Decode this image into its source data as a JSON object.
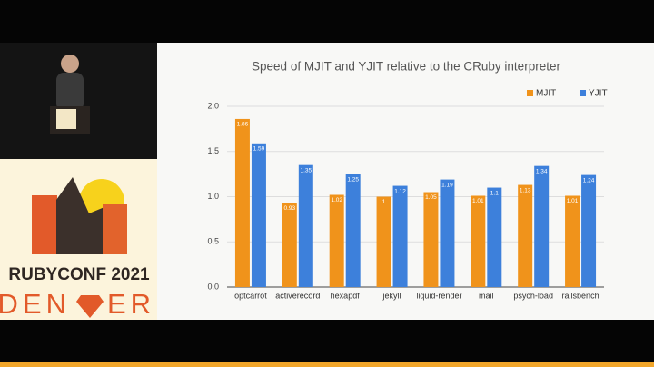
{
  "event": {
    "name": "RUBYCONF 2021",
    "city_left": "DEN",
    "city_right": "ER"
  },
  "chart_data": {
    "type": "bar",
    "title": "Speed of MJIT and YJIT relative to the CRuby interpreter",
    "categories": [
      "optcarrot",
      "activerecord",
      "hexapdf",
      "jekyll",
      "liquid-render",
      "mail",
      "psych-load",
      "railsbench"
    ],
    "series": [
      {
        "name": "MJIT",
        "color": "#f0931b",
        "values": [
          1.86,
          0.93,
          1.02,
          1,
          1.05,
          1.01,
          1.13,
          1.01
        ]
      },
      {
        "name": "YJIT",
        "color": "#3d80db",
        "values": [
          1.59,
          1.35,
          1.25,
          1.12,
          1.19,
          1.1,
          1.34,
          1.24
        ]
      }
    ],
    "ylim": [
      0,
      2
    ],
    "yticks": [
      {
        "value": 0,
        "label": "0.0"
      },
      {
        "value": 0.5,
        "label": "0.5"
      },
      {
        "value": 1,
        "label": "1.0"
      },
      {
        "value": 1.5,
        "label": "1.5"
      },
      {
        "value": 2,
        "label": "2.0"
      }
    ],
    "grid": true,
    "legend": "top-right"
  }
}
